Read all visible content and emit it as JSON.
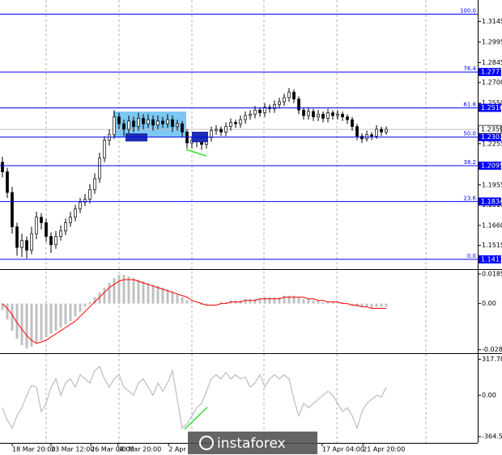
{
  "chart_data": [
    {
      "type": "candlestick",
      "xlim": [
        -0.5,
        97.83
      ],
      "ylim": [
        1.1342,
        1.3301
      ],
      "yticks": [
        1.3145,
        1.2995,
        1.2845,
        {
          "value": 1.27,
          "label": "1.2700"
        },
        {
          "value": 1.255,
          "label": "1.2550"
        },
        1.2255,
        1.1955,
        {
          "value": 1.181,
          "label": "1.1810"
        },
        {
          "value": 1.166,
          "label": "1.1660"
        },
        1.1515
      ],
      "fib_color": "#0000ff",
      "fib_levels": [
        {
          "label": "100.0",
          "value": 1.3198
        },
        {
          "label": "76.4",
          "value": 1.2777
        },
        {
          "label": "61.8",
          "value": 1.2516
        },
        {
          "label": "50.0",
          "value": 1.2303
        },
        {
          "label": "38.2",
          "value": 1.2095
        },
        {
          "label": "23.6",
          "value": 1.1834
        },
        {
          "label": "0.0",
          "value": 1.1413
        }
      ],
      "price_marks": [
        1.2777,
        1.2516,
        1.2303,
        1.2095,
        1.1834,
        1.1413
      ],
      "current_price": 1.2359,
      "candles": [
        [
          1.212,
          1.216,
          1.201,
          1.205
        ],
        [
          1.205,
          1.208,
          1.186,
          1.19
        ],
        [
          1.19,
          1.194,
          1.16,
          1.165
        ],
        [
          1.165,
          1.168,
          1.144,
          1.15
        ],
        [
          1.15,
          1.16,
          1.143,
          1.155
        ],
        [
          1.155,
          1.158,
          1.142,
          1.148
        ],
        [
          1.148,
          1.165,
          1.145,
          1.16
        ],
        [
          1.16,
          1.176,
          1.156,
          1.172
        ],
        [
          1.172,
          1.175,
          1.163,
          1.168
        ],
        [
          1.168,
          1.171,
          1.154,
          1.158
        ],
        [
          1.158,
          1.161,
          1.146,
          1.152
        ],
        [
          1.152,
          1.162,
          1.149,
          1.158
        ],
        [
          1.158,
          1.166,
          1.155,
          1.162
        ],
        [
          1.162,
          1.171,
          1.159,
          1.168
        ],
        [
          1.168,
          1.176,
          1.165,
          1.172
        ],
        [
          1.172,
          1.181,
          1.169,
          1.178
        ],
        [
          1.178,
          1.186,
          1.175,
          1.183
        ],
        [
          1.183,
          1.189,
          1.18,
          1.185
        ],
        [
          1.185,
          1.196,
          1.182,
          1.192
        ],
        [
          1.192,
          1.204,
          1.189,
          1.2
        ],
        [
          1.2,
          1.219,
          1.197,
          1.215
        ],
        [
          1.215,
          1.231,
          1.212,
          1.228
        ],
        [
          1.228,
          1.236,
          1.224,
          1.232
        ],
        [
          1.232,
          1.25,
          1.229,
          1.245
        ],
        [
          1.245,
          1.248,
          1.236,
          1.24
        ],
        [
          1.24,
          1.243,
          1.231,
          1.236
        ],
        [
          1.236,
          1.246,
          1.233,
          1.242
        ],
        [
          1.242,
          1.245,
          1.234,
          1.238
        ],
        [
          1.238,
          1.248,
          1.235,
          1.244
        ],
        [
          1.244,
          1.247,
          1.236,
          1.24
        ],
        [
          1.24,
          1.247,
          1.237,
          1.243
        ],
        [
          1.243,
          1.246,
          1.235,
          1.239
        ],
        [
          1.239,
          1.246,
          1.236,
          1.242
        ],
        [
          1.242,
          1.245,
          1.237,
          1.24
        ],
        [
          1.24,
          1.247,
          1.237,
          1.243
        ],
        [
          1.243,
          1.246,
          1.234,
          1.238
        ],
        [
          1.238,
          1.243,
          1.235,
          1.24
        ],
        [
          1.24,
          1.242,
          1.23,
          1.234
        ],
        [
          1.234,
          1.236,
          1.222,
          1.226
        ],
        [
          1.226,
          1.231,
          1.222,
          1.228
        ],
        [
          1.228,
          1.232,
          1.223,
          1.227
        ],
        [
          1.227,
          1.229,
          1.221,
          1.225
        ],
        [
          1.225,
          1.233,
          1.222,
          1.23
        ],
        [
          1.23,
          1.238,
          1.227,
          1.235
        ],
        [
          1.235,
          1.239,
          1.232,
          1.236
        ],
        [
          1.236,
          1.238,
          1.231,
          1.234
        ],
        [
          1.234,
          1.241,
          1.231,
          1.238
        ],
        [
          1.238,
          1.244,
          1.235,
          1.241
        ],
        [
          1.241,
          1.243,
          1.237,
          1.24
        ],
        [
          1.24,
          1.246,
          1.237,
          1.243
        ],
        [
          1.243,
          1.249,
          1.24,
          1.246
        ],
        [
          1.246,
          1.25,
          1.243,
          1.247
        ],
        [
          1.247,
          1.253,
          1.244,
          1.25
        ],
        [
          1.25,
          1.252,
          1.245,
          1.248
        ],
        [
          1.248,
          1.255,
          1.245,
          1.252
        ],
        [
          1.252,
          1.254,
          1.248,
          1.251
        ],
        [
          1.251,
          1.257,
          1.248,
          1.254
        ],
        [
          1.254,
          1.259,
          1.251,
          1.256
        ],
        [
          1.256,
          1.262,
          1.253,
          1.259
        ],
        [
          1.259,
          1.266,
          1.256,
          1.263
        ],
        [
          1.263,
          1.265,
          1.255,
          1.258
        ],
        [
          1.258,
          1.26,
          1.247,
          1.25
        ],
        [
          1.25,
          1.252,
          1.243,
          1.246
        ],
        [
          1.246,
          1.252,
          1.243,
          1.249
        ],
        [
          1.249,
          1.251,
          1.242,
          1.245
        ],
        [
          1.245,
          1.25,
          1.242,
          1.247
        ],
        [
          1.247,
          1.249,
          1.241,
          1.244
        ],
        [
          1.244,
          1.251,
          1.241,
          1.248
        ],
        [
          1.248,
          1.25,
          1.243,
          1.246
        ],
        [
          1.246,
          1.25,
          1.243,
          1.247
        ],
        [
          1.247,
          1.249,
          1.242,
          1.245
        ],
        [
          1.245,
          1.247,
          1.24,
          1.243
        ],
        [
          1.243,
          1.245,
          1.235,
          1.238
        ],
        [
          1.238,
          1.24,
          1.228,
          1.231
        ],
        [
          1.231,
          1.233,
          1.226,
          1.229
        ],
        [
          1.229,
          1.235,
          1.227,
          1.232
        ],
        [
          1.232,
          1.234,
          1.228,
          1.231
        ],
        [
          1.231,
          1.239,
          1.229,
          1.236
        ],
        [
          1.236,
          1.238,
          1.231,
          1.234
        ],
        [
          1.234,
          1.238,
          1.232,
          1.236
        ]
      ]
    },
    {
      "type": "macd",
      "ylim": [
        -0.0311,
        0.0211
      ],
      "yticks": [
        0.01856,
        {
          "value": 0,
          "label": "0.00"
        },
        -0.02892
      ],
      "histogram": {
        "color": "#c0c0c0",
        "values": [
          -0.004,
          -0.01,
          -0.017,
          -0.022,
          -0.026,
          -0.028,
          -0.027,
          -0.025,
          -0.023,
          -0.021,
          -0.019,
          -0.017,
          -0.015,
          -0.013,
          -0.011,
          -0.008,
          -0.005,
          -0.002,
          0.001,
          0.004,
          0.007,
          0.01,
          0.013,
          0.016,
          0.018,
          0.018,
          0.017,
          0.016,
          0.015,
          0.014,
          0.013,
          0.012,
          0.011,
          0.01,
          0.009,
          0.008,
          0.006,
          0.004,
          0.002,
          0.001,
          0.0,
          -0.001,
          -0.001,
          0.0,
          0.0,
          0.001,
          0.001,
          0.002,
          0.002,
          0.002,
          0.003,
          0.003,
          0.003,
          0.003,
          0.004,
          0.004,
          0.004,
          0.004,
          0.005,
          0.005,
          0.005,
          0.004,
          0.003,
          0.003,
          0.002,
          0.002,
          0.001,
          0.001,
          0.001,
          0.001,
          0.001,
          0.0,
          -0.001,
          -0.002,
          -0.002,
          -0.002,
          -0.003,
          -0.002,
          -0.002,
          -0.002
        ]
      },
      "signal": {
        "color": "#ff0000",
        "values": [
          0.0,
          -0.003,
          -0.007,
          -0.012,
          -0.016,
          -0.02,
          -0.023,
          -0.025,
          -0.024,
          -0.023,
          -0.021,
          -0.019,
          -0.017,
          -0.015,
          -0.013,
          -0.011,
          -0.008,
          -0.005,
          -0.002,
          0.001,
          0.004,
          0.007,
          0.01,
          0.012,
          0.014,
          0.015,
          0.015,
          0.015,
          0.014,
          0.013,
          0.012,
          0.011,
          0.01,
          0.009,
          0.008,
          0.007,
          0.006,
          0.005,
          0.004,
          0.002,
          0.001,
          0.0,
          -0.001,
          -0.001,
          -0.001,
          0.0,
          0.0,
          0.001,
          0.001,
          0.001,
          0.002,
          0.002,
          0.002,
          0.003,
          0.003,
          0.003,
          0.003,
          0.003,
          0.004,
          0.004,
          0.004,
          0.004,
          0.004,
          0.003,
          0.003,
          0.002,
          0.002,
          0.001,
          0.001,
          0.001,
          0.0,
          0.0,
          -0.001,
          -0.001,
          -0.002,
          -0.002,
          -0.003,
          -0.003,
          -0.003,
          -0.003
        ]
      }
    },
    {
      "type": "line",
      "ylim": [
        -420,
        365
      ],
      "yticks": [
        317.7833,
        {
          "value": 0,
          "label": "0.00"
        },
        -364.573
      ],
      "color": "#bdbdbd",
      "values": [
        -109,
        -218,
        -290,
        -181,
        -109,
        0,
        87,
        72,
        -145,
        -72,
        72,
        145,
        0,
        109,
        145,
        72,
        181,
        145,
        109,
        218,
        254,
        145,
        72,
        145,
        181,
        72,
        36,
        0,
        109,
        145,
        72,
        0,
        109,
        36,
        109,
        218,
        -36,
        -290,
        -254,
        -181,
        -109,
        -72,
        36,
        145,
        181,
        145,
        203,
        145,
        181,
        145,
        160,
        72,
        109,
        181,
        72,
        145,
        181,
        145,
        181,
        145,
        -36,
        -181,
        -72,
        -109,
        -72,
        -36,
        0,
        36,
        0,
        -72,
        -145,
        -109,
        -181,
        -290,
        -145,
        -72,
        -36,
        0,
        -14,
        72
      ],
      "xticks": [
        {
          "value": 2,
          "label": "18 Mar 20:00"
        },
        {
          "value": 10,
          "label": "23 Mar 12:00"
        },
        {
          "value": 18.2,
          "label": "26 Mar 04:00"
        },
        {
          "value": 23.8,
          "label": "30 Mar 20:00"
        },
        {
          "value": 34.2,
          "label": "2 Apr"
        },
        {
          "value": 65.8,
          "label": "17 Apr 04:00"
        },
        {
          "value": 74.2,
          "label": "21 Apr 20:00"
        }
      ]
    }
  ],
  "watermark": "instaforex"
}
